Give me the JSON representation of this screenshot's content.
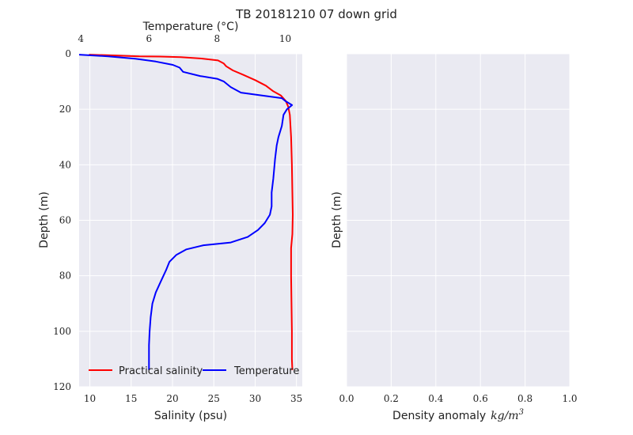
{
  "figure": {
    "title": "TB 20181210 07 down grid"
  },
  "colors": {
    "panel_bg": "#eaeaf2",
    "grid": "#ffffff",
    "salinity": "#ff0000",
    "temperature": "#0000ff"
  },
  "chart_data": [
    {
      "type": "line",
      "panel": "left",
      "ylabel": "Depth (m)",
      "xlabel": "Salinity (psu)",
      "xlim": [
        8.7,
        35.7
      ],
      "ylim": [
        120,
        0
      ],
      "xticks": [
        10,
        15,
        20,
        25,
        30,
        35
      ],
      "yticks": [
        0,
        20,
        40,
        60,
        80,
        100,
        120
      ],
      "top_axis": {
        "label": "Temperature (°C)",
        "xlim": [
          3.95,
          10.5
        ],
        "ticks": [
          4,
          6,
          8,
          10
        ]
      },
      "grid": true,
      "legend_position": "lower-left",
      "series": [
        {
          "name": "Practical salinity",
          "axis": "bottom",
          "color": "#ff0000",
          "points": [
            [
              9.9,
              0.3
            ],
            [
              13,
              0.6
            ],
            [
              16,
              0.9
            ],
            [
              18.5,
              1.0
            ],
            [
              21,
              1.2
            ],
            [
              23.5,
              1.7
            ],
            [
              25.5,
              2.4
            ],
            [
              26.2,
              3.5
            ],
            [
              26.5,
              4.5
            ],
            [
              27.3,
              6.0
            ],
            [
              28.5,
              7.5
            ],
            [
              30.0,
              9.5
            ],
            [
              31.3,
              11.5
            ],
            [
              32.2,
              13.5
            ],
            [
              33.1,
              15.0
            ],
            [
              33.7,
              17.0
            ],
            [
              34.0,
              19.0
            ],
            [
              34.2,
              22.0
            ],
            [
              34.25,
              25.0
            ],
            [
              34.35,
              30.0
            ],
            [
              34.45,
              40.0
            ],
            [
              34.5,
              50.0
            ],
            [
              34.55,
              58.0
            ],
            [
              34.5,
              65.0
            ],
            [
              34.35,
              70.0
            ],
            [
              34.35,
              80.0
            ],
            [
              34.4,
              90.0
            ],
            [
              34.45,
              100.0
            ],
            [
              34.45,
              110.0
            ],
            [
              34.5,
              114.0
            ]
          ]
        },
        {
          "name": "Temperature",
          "axis": "top",
          "color": "#0000ff",
          "points": [
            [
              3.95,
              0.3
            ],
            [
              4.8,
              0.9
            ],
            [
              5.6,
              1.8
            ],
            [
              6.2,
              2.8
            ],
            [
              6.7,
              4.0
            ],
            [
              6.9,
              5.0
            ],
            [
              7.0,
              6.5
            ],
            [
              7.5,
              8.0
            ],
            [
              8.0,
              9.0
            ],
            [
              8.2,
              10.0
            ],
            [
              8.4,
              12.0
            ],
            [
              8.7,
              14.0
            ],
            [
              9.3,
              15.0
            ],
            [
              9.9,
              16.0
            ],
            [
              10.0,
              17.0
            ],
            [
              10.2,
              18.5
            ],
            [
              10.05,
              20.0
            ],
            [
              9.95,
              22.0
            ],
            [
              9.9,
              26.0
            ],
            [
              9.8,
              30.0
            ],
            [
              9.75,
              33.0
            ],
            [
              9.7,
              38.0
            ],
            [
              9.65,
              45.0
            ],
            [
              9.6,
              50.0
            ],
            [
              9.6,
              55.0
            ],
            [
              9.55,
              58.0
            ],
            [
              9.4,
              61.0
            ],
            [
              9.2,
              63.5
            ],
            [
              8.9,
              66.0
            ],
            [
              8.4,
              68.0
            ],
            [
              7.6,
              69.0
            ],
            [
              7.1,
              70.5
            ],
            [
              6.8,
              72.5
            ],
            [
              6.6,
              75.0
            ],
            [
              6.5,
              78.0
            ],
            [
              6.35,
              82.0
            ],
            [
              6.2,
              86.0
            ],
            [
              6.1,
              90.0
            ],
            [
              6.05,
              95.0
            ],
            [
              6.02,
              100.0
            ],
            [
              6.0,
              105.0
            ],
            [
              6.0,
              110.0
            ],
            [
              6.0,
              114.0
            ]
          ]
        }
      ]
    },
    {
      "type": "line",
      "panel": "right",
      "ylabel": "Depth (m)",
      "xlabel": "Density anomaly kg/m3",
      "xlim": [
        0,
        1
      ],
      "xticks": [
        "0.0",
        "0.2",
        "0.4",
        "0.6",
        "0.8",
        "1.0"
      ],
      "grid": true,
      "series": []
    }
  ]
}
